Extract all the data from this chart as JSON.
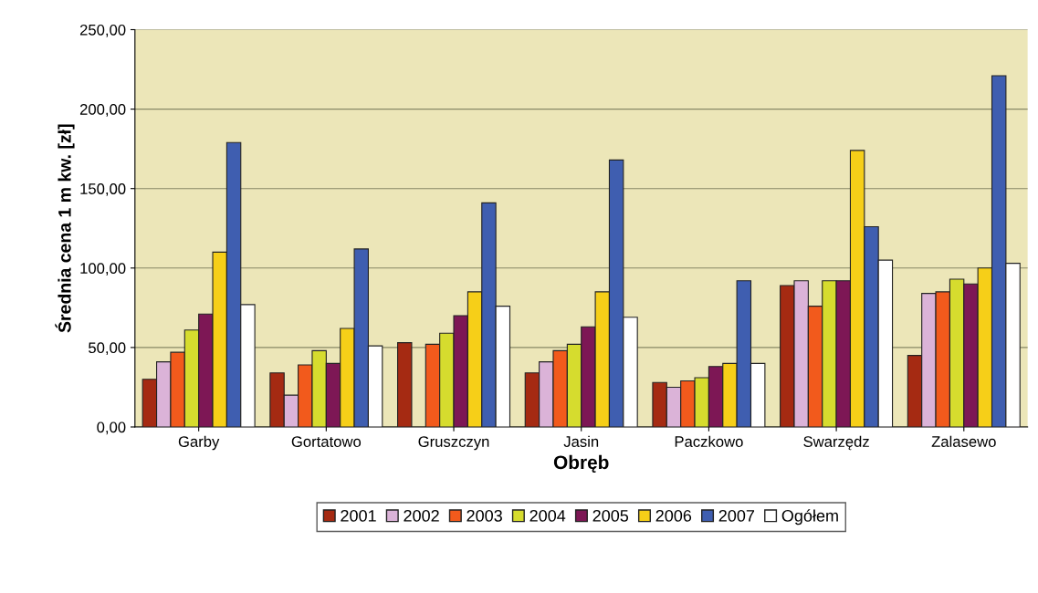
{
  "chart_data": {
    "type": "bar",
    "xlabel": "Obręb",
    "ylabel": "Średnia cena 1 m kw. [zł]",
    "categories": [
      "Garby",
      "Gortatowo",
      "Gruszczyn",
      "Jasin",
      "Paczkowo",
      "Swarzędz",
      "Zalasewo"
    ],
    "series": [
      {
        "name": "2001",
        "color": "#a52a12",
        "values": [
          30,
          34,
          53,
          34,
          28,
          89,
          45
        ]
      },
      {
        "name": "2002",
        "color": "#dbb3d8",
        "values": [
          41,
          20,
          null,
          41,
          25,
          92,
          84
        ]
      },
      {
        "name": "2003",
        "color": "#f25a1c",
        "values": [
          47,
          39,
          52,
          48,
          29,
          76,
          85
        ]
      },
      {
        "name": "2004",
        "color": "#d6dc2e",
        "values": [
          61,
          48,
          59,
          52,
          31,
          92,
          93
        ]
      },
      {
        "name": "2005",
        "color": "#7d1755",
        "values": [
          71,
          40,
          70,
          63,
          38,
          92,
          90
        ]
      },
      {
        "name": "2006",
        "color": "#f6cf18",
        "values": [
          110,
          62,
          85,
          85,
          40,
          174,
          100
        ]
      },
      {
        "name": "2007",
        "color": "#3f5eb0",
        "values": [
          179,
          112,
          141,
          168,
          92,
          126,
          221
        ]
      },
      {
        "name": "Ogółem",
        "color": "#ffffff",
        "values": [
          77,
          51,
          76,
          69,
          40,
          105,
          103
        ]
      }
    ],
    "ylim": [
      0,
      250
    ],
    "yticks": [
      {
        "value": 0,
        "label": "0,00"
      },
      {
        "value": 50,
        "label": "50,00"
      },
      {
        "value": 100,
        "label": "100,00"
      },
      {
        "value": 150,
        "label": "150,00"
      },
      {
        "value": 200,
        "label": "200,00"
      },
      {
        "value": 250,
        "label": "250,00"
      }
    ],
    "grid": "y",
    "legend": "bottom"
  }
}
